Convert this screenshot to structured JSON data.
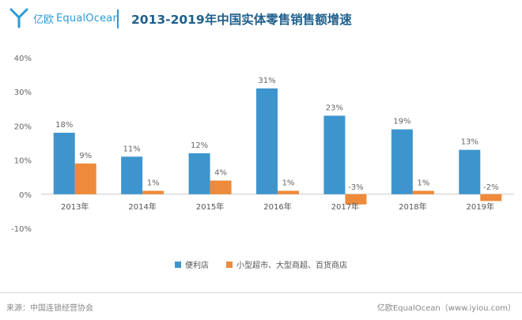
{
  "brand": {
    "name_cn": "亿欧",
    "name_en": "EqualOcean",
    "color": "#2a9bd6"
  },
  "title": "2013-2019年中国实体零售销售额增速",
  "source": "来源：中国连锁经营协会",
  "credit": "亿欧EqualOcean（www.iyiou.com）",
  "chart_data": {
    "type": "bar",
    "title": "2013-2019年中国实体零售销售额增速",
    "categories": [
      "2013年",
      "2014年",
      "2015年",
      "2016年",
      "2017年",
      "2018年",
      "2019年"
    ],
    "series": [
      {
        "name": "便利店",
        "color": "#3e95cd",
        "values": [
          18,
          11,
          12,
          31,
          23,
          19,
          13
        ],
        "labels": [
          "18%",
          "11%",
          "12%",
          "31%",
          "23%",
          "19%",
          "13%"
        ]
      },
      {
        "name": "小型超市、大型商超、百货商店",
        "color": "#ee8a3b",
        "values": [
          9,
          1,
          4,
          1,
          -3,
          1,
          -2
        ],
        "labels": [
          "9%",
          "1%",
          "4%",
          "1%",
          "-3%",
          "1%",
          "-2%"
        ]
      }
    ],
    "yticks": [
      "40%",
      "30%",
      "20%",
      "10%",
      "0%",
      "-10%"
    ],
    "ylim": [
      -10,
      40
    ],
    "grid": false,
    "legend": "bottom"
  }
}
